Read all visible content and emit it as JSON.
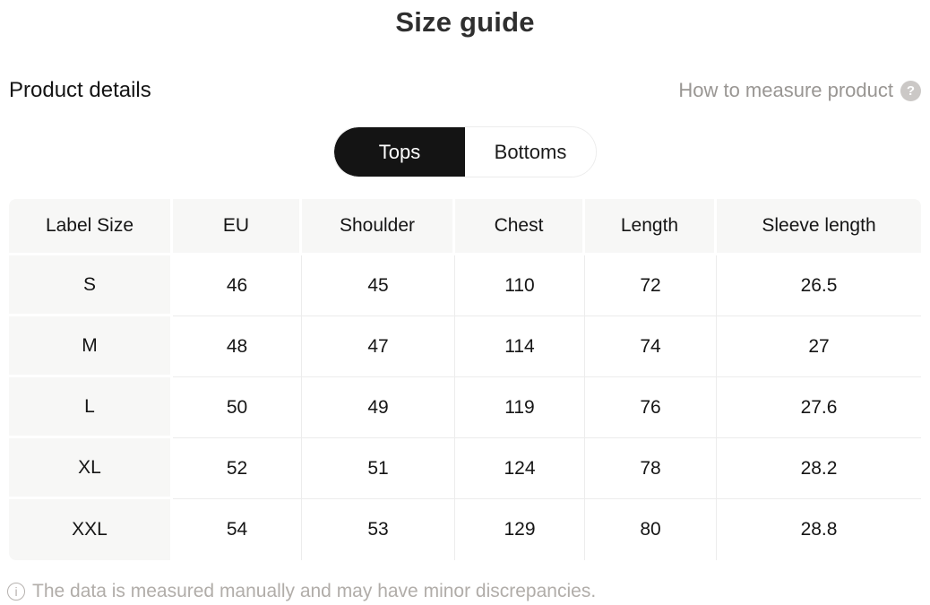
{
  "page": {
    "title": "Size guide"
  },
  "colors": {
    "accent_black": "#141414",
    "table_header_bg": "#f7f7f6",
    "body_divider": "#ececec",
    "muted_text": "#999693",
    "footer_text": "#b1ada9"
  },
  "details": {
    "heading": "Product details",
    "measure_link_label": "How to measure product",
    "help_icon_glyph": "?"
  },
  "tabs": [
    {
      "label": "Tops",
      "selected": true
    },
    {
      "label": "Bottoms",
      "selected": false
    }
  ],
  "size_table": {
    "headers": [
      "Label Size",
      "EU",
      "Shoulder",
      "Chest",
      "Length",
      "Sleeve length"
    ],
    "rows": [
      [
        "S",
        "46",
        "45",
        "110",
        "72",
        "26.5"
      ],
      [
        "M",
        "48",
        "47",
        "114",
        "74",
        "27"
      ],
      [
        "L",
        "50",
        "49",
        "119",
        "76",
        "27.6"
      ],
      [
        "XL",
        "52",
        "51",
        "124",
        "78",
        "28.2"
      ],
      [
        "XXL",
        "54",
        "53",
        "129",
        "80",
        "28.8"
      ]
    ]
  },
  "footer": {
    "info_icon_glyph": "i",
    "note": "The data is measured manually and may have minor discrepancies."
  }
}
